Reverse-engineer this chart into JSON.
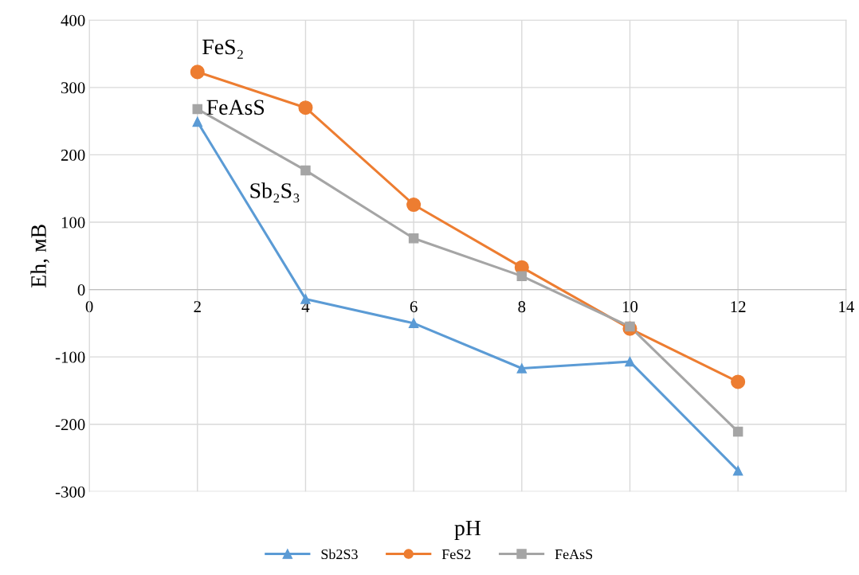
{
  "chart_data": {
    "type": "line",
    "xlabel": "pH",
    "ylabel": "Eh, мВ",
    "x": [
      2,
      4,
      6,
      8,
      10,
      12
    ],
    "series": [
      {
        "name": "Sb2S3",
        "color": "#5b9bd5",
        "marker": "triangle",
        "values": [
          249,
          -14,
          -50,
          -117,
          -107,
          -269
        ]
      },
      {
        "name": "FeS2",
        "color": "#ed7d31",
        "marker": "circle",
        "values": [
          323,
          270,
          126,
          33,
          -58,
          -137
        ]
      },
      {
        "name": "FeAsS",
        "color": "#a5a5a5",
        "marker": "square",
        "values": [
          268,
          177,
          76,
          20,
          -55,
          -211
        ]
      }
    ],
    "xlim": [
      0,
      14
    ],
    "xticks": [
      0,
      2,
      4,
      6,
      8,
      10,
      12,
      14
    ],
    "ylim": [
      -300,
      400
    ],
    "yticks": [
      -300,
      -200,
      -100,
      0,
      100,
      200,
      300,
      400
    ],
    "grid": true,
    "legend": "bottom",
    "line_style": "solid",
    "annotations": [
      "FeS₂",
      "FeAsS",
      "Sb₂S₃"
    ]
  }
}
